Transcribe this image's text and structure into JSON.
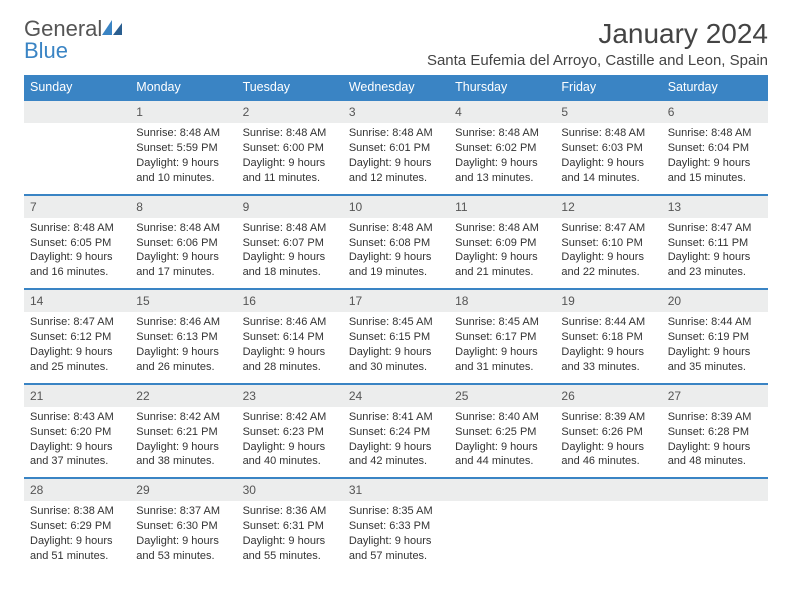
{
  "brand": {
    "part1": "General",
    "part2": "Blue"
  },
  "title": "January 2024",
  "location": "Santa Eufemia del Arroyo, Castille and Leon, Spain",
  "colors": {
    "header_bg": "#3a84c4",
    "header_text": "#ffffff",
    "daynum_bg": "#eceded",
    "daynum_border_top": "#3a84c4",
    "body_bg": "#ffffff",
    "text": "#333333"
  },
  "typography": {
    "title_fontsize": 28,
    "location_fontsize": 15,
    "th_fontsize": 12.5,
    "cell_fontsize": 11
  },
  "weekdays": [
    "Sunday",
    "Monday",
    "Tuesday",
    "Wednesday",
    "Thursday",
    "Friday",
    "Saturday"
  ],
  "weeks": [
    [
      null,
      {
        "n": "1",
        "sr": "Sunrise: 8:48 AM",
        "ss": "Sunset: 5:59 PM",
        "d1": "Daylight: 9 hours",
        "d2": "and 10 minutes."
      },
      {
        "n": "2",
        "sr": "Sunrise: 8:48 AM",
        "ss": "Sunset: 6:00 PM",
        "d1": "Daylight: 9 hours",
        "d2": "and 11 minutes."
      },
      {
        "n": "3",
        "sr": "Sunrise: 8:48 AM",
        "ss": "Sunset: 6:01 PM",
        "d1": "Daylight: 9 hours",
        "d2": "and 12 minutes."
      },
      {
        "n": "4",
        "sr": "Sunrise: 8:48 AM",
        "ss": "Sunset: 6:02 PM",
        "d1": "Daylight: 9 hours",
        "d2": "and 13 minutes."
      },
      {
        "n": "5",
        "sr": "Sunrise: 8:48 AM",
        "ss": "Sunset: 6:03 PM",
        "d1": "Daylight: 9 hours",
        "d2": "and 14 minutes."
      },
      {
        "n": "6",
        "sr": "Sunrise: 8:48 AM",
        "ss": "Sunset: 6:04 PM",
        "d1": "Daylight: 9 hours",
        "d2": "and 15 minutes."
      }
    ],
    [
      {
        "n": "7",
        "sr": "Sunrise: 8:48 AM",
        "ss": "Sunset: 6:05 PM",
        "d1": "Daylight: 9 hours",
        "d2": "and 16 minutes."
      },
      {
        "n": "8",
        "sr": "Sunrise: 8:48 AM",
        "ss": "Sunset: 6:06 PM",
        "d1": "Daylight: 9 hours",
        "d2": "and 17 minutes."
      },
      {
        "n": "9",
        "sr": "Sunrise: 8:48 AM",
        "ss": "Sunset: 6:07 PM",
        "d1": "Daylight: 9 hours",
        "d2": "and 18 minutes."
      },
      {
        "n": "10",
        "sr": "Sunrise: 8:48 AM",
        "ss": "Sunset: 6:08 PM",
        "d1": "Daylight: 9 hours",
        "d2": "and 19 minutes."
      },
      {
        "n": "11",
        "sr": "Sunrise: 8:48 AM",
        "ss": "Sunset: 6:09 PM",
        "d1": "Daylight: 9 hours",
        "d2": "and 21 minutes."
      },
      {
        "n": "12",
        "sr": "Sunrise: 8:47 AM",
        "ss": "Sunset: 6:10 PM",
        "d1": "Daylight: 9 hours",
        "d2": "and 22 minutes."
      },
      {
        "n": "13",
        "sr": "Sunrise: 8:47 AM",
        "ss": "Sunset: 6:11 PM",
        "d1": "Daylight: 9 hours",
        "d2": "and 23 minutes."
      }
    ],
    [
      {
        "n": "14",
        "sr": "Sunrise: 8:47 AM",
        "ss": "Sunset: 6:12 PM",
        "d1": "Daylight: 9 hours",
        "d2": "and 25 minutes."
      },
      {
        "n": "15",
        "sr": "Sunrise: 8:46 AM",
        "ss": "Sunset: 6:13 PM",
        "d1": "Daylight: 9 hours",
        "d2": "and 26 minutes."
      },
      {
        "n": "16",
        "sr": "Sunrise: 8:46 AM",
        "ss": "Sunset: 6:14 PM",
        "d1": "Daylight: 9 hours",
        "d2": "and 28 minutes."
      },
      {
        "n": "17",
        "sr": "Sunrise: 8:45 AM",
        "ss": "Sunset: 6:15 PM",
        "d1": "Daylight: 9 hours",
        "d2": "and 30 minutes."
      },
      {
        "n": "18",
        "sr": "Sunrise: 8:45 AM",
        "ss": "Sunset: 6:17 PM",
        "d1": "Daylight: 9 hours",
        "d2": "and 31 minutes."
      },
      {
        "n": "19",
        "sr": "Sunrise: 8:44 AM",
        "ss": "Sunset: 6:18 PM",
        "d1": "Daylight: 9 hours",
        "d2": "and 33 minutes."
      },
      {
        "n": "20",
        "sr": "Sunrise: 8:44 AM",
        "ss": "Sunset: 6:19 PM",
        "d1": "Daylight: 9 hours",
        "d2": "and 35 minutes."
      }
    ],
    [
      {
        "n": "21",
        "sr": "Sunrise: 8:43 AM",
        "ss": "Sunset: 6:20 PM",
        "d1": "Daylight: 9 hours",
        "d2": "and 37 minutes."
      },
      {
        "n": "22",
        "sr": "Sunrise: 8:42 AM",
        "ss": "Sunset: 6:21 PM",
        "d1": "Daylight: 9 hours",
        "d2": "and 38 minutes."
      },
      {
        "n": "23",
        "sr": "Sunrise: 8:42 AM",
        "ss": "Sunset: 6:23 PM",
        "d1": "Daylight: 9 hours",
        "d2": "and 40 minutes."
      },
      {
        "n": "24",
        "sr": "Sunrise: 8:41 AM",
        "ss": "Sunset: 6:24 PM",
        "d1": "Daylight: 9 hours",
        "d2": "and 42 minutes."
      },
      {
        "n": "25",
        "sr": "Sunrise: 8:40 AM",
        "ss": "Sunset: 6:25 PM",
        "d1": "Daylight: 9 hours",
        "d2": "and 44 minutes."
      },
      {
        "n": "26",
        "sr": "Sunrise: 8:39 AM",
        "ss": "Sunset: 6:26 PM",
        "d1": "Daylight: 9 hours",
        "d2": "and 46 minutes."
      },
      {
        "n": "27",
        "sr": "Sunrise: 8:39 AM",
        "ss": "Sunset: 6:28 PM",
        "d1": "Daylight: 9 hours",
        "d2": "and 48 minutes."
      }
    ],
    [
      {
        "n": "28",
        "sr": "Sunrise: 8:38 AM",
        "ss": "Sunset: 6:29 PM",
        "d1": "Daylight: 9 hours",
        "d2": "and 51 minutes."
      },
      {
        "n": "29",
        "sr": "Sunrise: 8:37 AM",
        "ss": "Sunset: 6:30 PM",
        "d1": "Daylight: 9 hours",
        "d2": "and 53 minutes."
      },
      {
        "n": "30",
        "sr": "Sunrise: 8:36 AM",
        "ss": "Sunset: 6:31 PM",
        "d1": "Daylight: 9 hours",
        "d2": "and 55 minutes."
      },
      {
        "n": "31",
        "sr": "Sunrise: 8:35 AM",
        "ss": "Sunset: 6:33 PM",
        "d1": "Daylight: 9 hours",
        "d2": "and 57 minutes."
      },
      null,
      null,
      null
    ]
  ]
}
